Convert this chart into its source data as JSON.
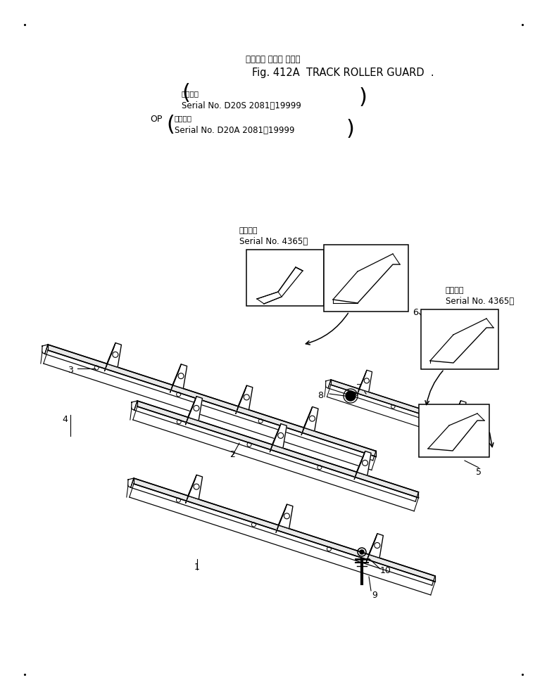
{
  "bg_color": "#ffffff",
  "title_line1": "トラック ローラ ガード",
  "title_line2": "Fig. 412A  TRACK ROLLER GUARD  .",
  "subtitle1_kanji": "適用号機",
  "subtitle1": "Serial No. D20S 2081～19999",
  "subtitle2_kanji": "適用号機",
  "subtitle2": "Serial No. D20A 2081～19999",
  "op_label": "OP",
  "callout1_kanji": "適用号機",
  "callout1_serial": "Serial No. 4365～",
  "callout2_kanji": "適用号機",
  "callout2_serial": "Serial No. 4365～",
  "fig_width": 7.77,
  "fig_height": 9.94,
  "dpi": 100
}
